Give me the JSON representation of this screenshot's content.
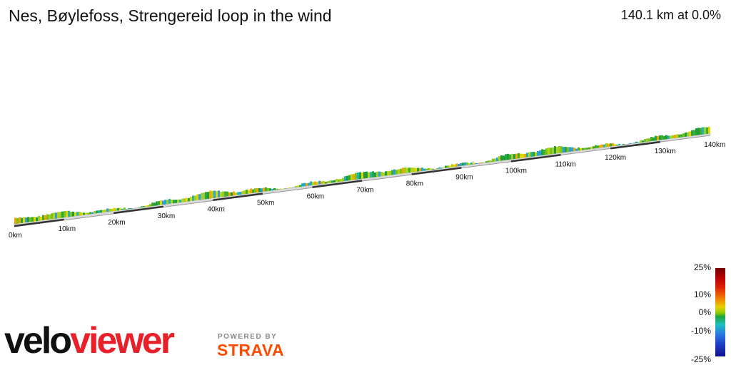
{
  "header": {
    "title": "Nes, Bøylefoss, Strengereid loop in the wind",
    "summary": "140.1 km at 0.0%"
  },
  "profile": {
    "km_labels": [
      "0km",
      "10km",
      "20km",
      "30km",
      "40km",
      "50km",
      "60km",
      "70km",
      "80km",
      "90km",
      "100km",
      "110km",
      "120km",
      "130km",
      "140km"
    ]
  },
  "legend": {
    "labels": [
      "25%",
      "10%",
      "0%",
      "-10%",
      "-25%"
    ]
  },
  "branding": {
    "logo_part1": "velo",
    "logo_part2": "viewer",
    "powered_by": "POWERED BY",
    "strava": "STRAVA"
  },
  "colors": {
    "logo_red": "#e8202a",
    "strava_orange": "#fc4c02"
  }
}
